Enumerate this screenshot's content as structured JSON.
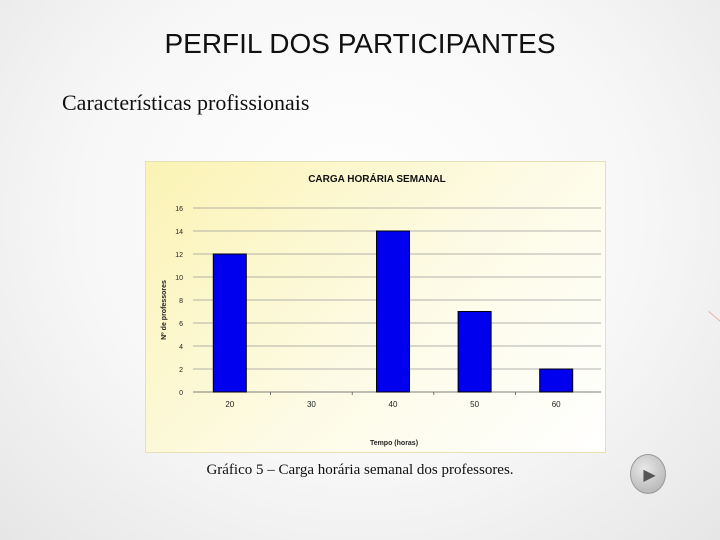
{
  "slide": {
    "title": "PERFIL DOS PARTICIPANTES",
    "subtitle": "Características profissionais",
    "caption": "Gráfico 5 – Carga horária semanal dos professores."
  },
  "navigation": {
    "next_icon": "play-triangle-icon",
    "next_glyph": "▶"
  },
  "colors": {
    "bar": "#0000ee",
    "bar_stroke": "#000000",
    "panel": "#fbf3b4"
  },
  "chart_data": {
    "type": "bar",
    "title": "CARGA  HORÁRIA SEMANAL",
    "xlabel": "Tempo (horas)",
    "ylabel": "Nº de professores",
    "categories": [
      "20",
      "30",
      "40",
      "50",
      "60"
    ],
    "values": [
      12,
      0,
      14,
      7,
      2
    ],
    "ylim": [
      0,
      16
    ],
    "yticks": [
      "0",
      "2",
      "4",
      "6",
      "8",
      "10",
      "12",
      "14",
      "16"
    ],
    "grid": true,
    "legend": "none"
  }
}
